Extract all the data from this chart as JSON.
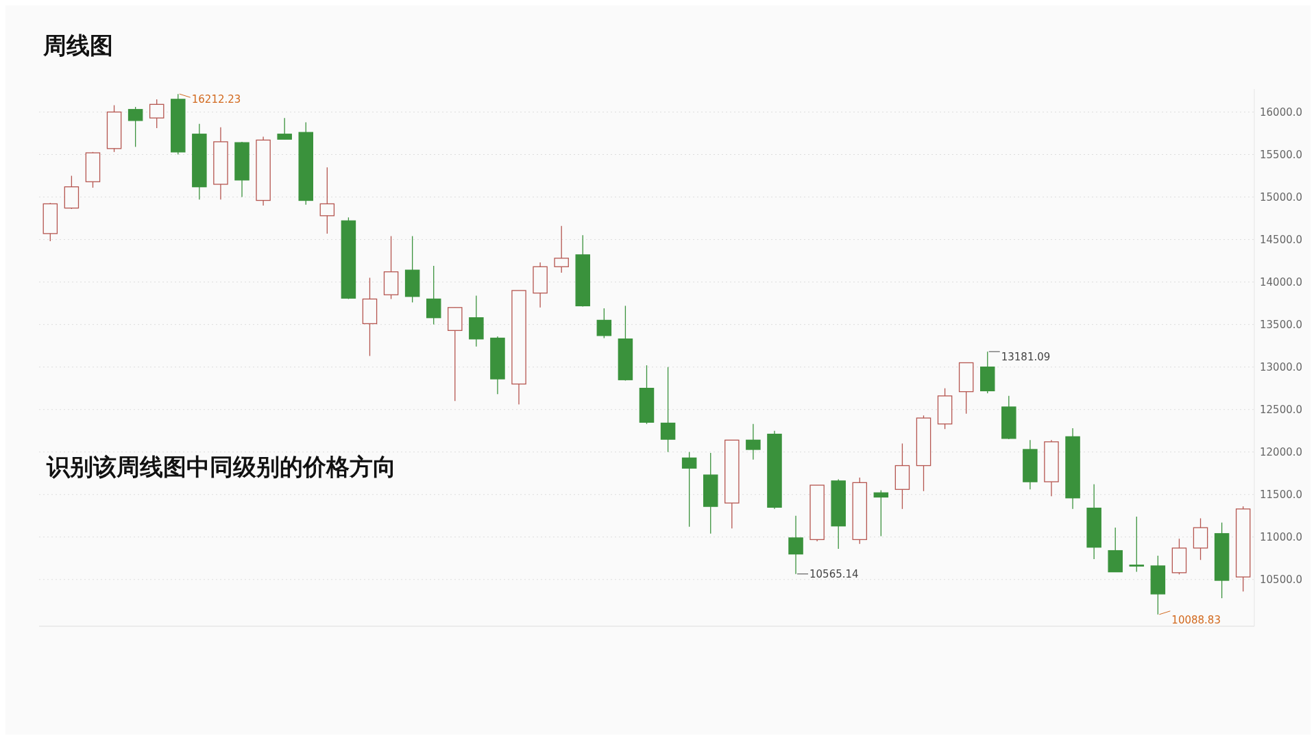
{
  "chart_data": {
    "type": "candlestick",
    "title": "周线图",
    "annotations": [
      "识别该周线图中同级别的价格方向",
      "16212.23",
      "13181.09",
      "10565.14",
      "10088.83"
    ],
    "categories": [
      null,
      null,
      null,
      null,
      null,
      null,
      null,
      null,
      null,
      null,
      null,
      null,
      null,
      null,
      null,
      null,
      null,
      null,
      null,
      null,
      null,
      null,
      null,
      null,
      null,
      null,
      null,
      null,
      null,
      null,
      null,
      null,
      null,
      null,
      null,
      null,
      null,
      null,
      null,
      null,
      null,
      null,
      null,
      null,
      null,
      null,
      null,
      null,
      null,
      null,
      null,
      null,
      null,
      null,
      null,
      null,
      null
    ],
    "ohlc": [
      [
        14570,
        14930,
        14480,
        14920
      ],
      [
        14870,
        15250,
        14860,
        15120
      ],
      [
        15180,
        15530,
        15110,
        15520
      ],
      [
        15570,
        16080,
        15530,
        16000
      ],
      [
        16030,
        16060,
        15590,
        15900
      ],
      [
        15930,
        16150,
        15810,
        16090
      ],
      [
        16150,
        16212.23,
        15500,
        15530
      ],
      [
        15740,
        15860,
        14970,
        15120
      ],
      [
        15150,
        15820,
        14970,
        15650
      ],
      [
        15640,
        15650,
        15000,
        15200
      ],
      [
        14960,
        15710,
        14900,
        15670
      ],
      [
        15740,
        15930,
        15680,
        15680
      ],
      [
        15760,
        15880,
        14910,
        14960
      ],
      [
        14780,
        15350,
        14570,
        14920
      ],
      [
        14720,
        14760,
        13800,
        13810
      ],
      [
        13510,
        14050,
        13130,
        13800
      ],
      [
        13850,
        14540,
        13800,
        14120
      ],
      [
        14140,
        14540,
        13760,
        13830
      ],
      [
        13800,
        14190,
        13500,
        13580
      ],
      [
        13430,
        13700,
        12600,
        13700
      ],
      [
        13580,
        13840,
        13240,
        13330
      ],
      [
        13340,
        13360,
        12680,
        12860
      ],
      [
        12800,
        13900,
        12560,
        13900
      ],
      [
        13870,
        14230,
        13700,
        14180
      ],
      [
        14180,
        14660,
        14110,
        14280
      ],
      [
        14320,
        14550,
        13710,
        13720
      ],
      [
        13550,
        13690,
        13340,
        13370
      ],
      [
        13330,
        13720,
        12840,
        12850
      ],
      [
        12750,
        13020,
        12330,
        12350
      ],
      [
        12340,
        13000,
        12000,
        12150
      ],
      [
        11930,
        12000,
        11120,
        11810
      ],
      [
        11730,
        11990,
        11040,
        11360
      ],
      [
        11400,
        12140,
        11100,
        12140
      ],
      [
        12140,
        12330,
        11910,
        12030
      ],
      [
        12210,
        12250,
        11330,
        11350
      ],
      [
        10990,
        11250,
        10565.14,
        10800
      ],
      [
        10970,
        11610,
        10950,
        11610
      ],
      [
        11660,
        11680,
        10860,
        11130
      ],
      [
        10970,
        11700,
        10920,
        11640
      ],
      [
        11520,
        11550,
        11010,
        11470
      ],
      [
        11560,
        12100,
        11330,
        11840
      ],
      [
        11840,
        12430,
        11540,
        12400
      ],
      [
        12330,
        12750,
        12270,
        12660
      ],
      [
        12710,
        13050,
        12450,
        13050
      ],
      [
        13000,
        13181.09,
        12690,
        12720
      ],
      [
        12530,
        12660,
        12150,
        12160
      ],
      [
        12030,
        12140,
        11560,
        11650
      ],
      [
        11650,
        12140,
        11480,
        12120
      ],
      [
        12180,
        12280,
        11330,
        11460
      ],
      [
        11340,
        11620,
        10740,
        10880
      ],
      [
        10840,
        11110,
        10590,
        10590
      ],
      [
        10670,
        11240,
        10590,
        10660
      ],
      [
        10660,
        10780,
        10088.83,
        10330
      ],
      [
        10580,
        10980,
        10560,
        10870
      ],
      [
        10870,
        11220,
        10730,
        11110
      ],
      [
        11040,
        11170,
        10280,
        10490
      ],
      [
        10530,
        11360,
        10360,
        11330
      ]
    ],
    "ylim": [
      9950,
      16270
    ],
    "yticks": [
      {
        "value": 10500,
        "label": "10500.0"
      },
      {
        "value": 11000,
        "label": "11000.0"
      },
      {
        "value": 11500,
        "label": "11500.0"
      },
      {
        "value": 12000,
        "label": "12000.0"
      },
      {
        "value": 12500,
        "label": "12500.0"
      },
      {
        "value": 13000,
        "label": "13000.0"
      },
      {
        "value": 13500,
        "label": "13500.0"
      },
      {
        "value": 14000,
        "label": "14000.0"
      },
      {
        "value": 14500,
        "label": "14500.0"
      },
      {
        "value": 15000,
        "label": "15000.0"
      },
      {
        "value": 15500,
        "label": "15500.0"
      },
      {
        "value": 16000,
        "label": "16000.0"
      }
    ],
    "grid": "y"
  }
}
